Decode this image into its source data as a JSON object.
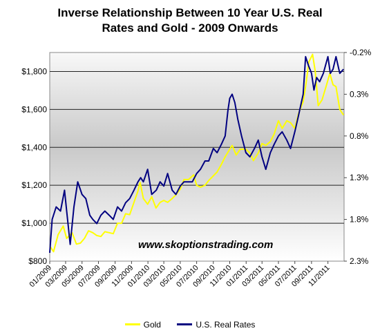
{
  "chart_data": {
    "type": "line",
    "title": [
      "Inverse Relationship Between 10 Year U.S. Real",
      "Rates and Gold - 2009 Onwards"
    ],
    "watermark": "www.skoptionstrading.com",
    "x_tick_labels": [
      "01/2009",
      "03/2009",
      "05/2009",
      "07/2009",
      "09/2009",
      "11/2009",
      "01/2010",
      "03/2010",
      "05/2010",
      "07/2010",
      "09/2010",
      "11/2010",
      "01/2011",
      "03/2011",
      "05/2011",
      "07/2011",
      "09/2011",
      "11/2011"
    ],
    "xlim": [
      "2009-01-01",
      "2011-12-31"
    ],
    "y_left": {
      "ticks": [
        "$800",
        "$1,000",
        "$1,200",
        "$1,400",
        "$1,600",
        "$1,800"
      ],
      "ylim": [
        800,
        1900
      ]
    },
    "y_right": {
      "ticks": [
        "-0.2%",
        "0.3%",
        "0.8%",
        "1.3%",
        "1.8%",
        "2.3%"
      ],
      "ylim": [
        2.3,
        -0.2
      ],
      "inverted": true
    },
    "grid": true,
    "legend_position": "bottom",
    "series": [
      {
        "name": "Gold",
        "color": "#ffff00",
        "axis": "left",
        "x": [
          "2009-01-01",
          "2009-01-15",
          "2009-02-01",
          "2009-02-20",
          "2009-03-05",
          "2009-03-25",
          "2009-04-10",
          "2009-04-25",
          "2009-05-10",
          "2009-05-25",
          "2009-06-10",
          "2009-06-25",
          "2009-07-10",
          "2009-07-25",
          "2009-08-10",
          "2009-08-25",
          "2009-09-10",
          "2009-09-25",
          "2009-10-10",
          "2009-10-25",
          "2009-11-10",
          "2009-11-25",
          "2009-12-03",
          "2009-12-15",
          "2009-12-31",
          "2010-01-15",
          "2010-01-31",
          "2010-02-15",
          "2010-03-01",
          "2010-03-15",
          "2010-04-01",
          "2010-04-15",
          "2010-05-01",
          "2010-05-15",
          "2010-06-01",
          "2010-06-20",
          "2010-07-01",
          "2010-07-15",
          "2010-08-01",
          "2010-08-15",
          "2010-09-01",
          "2010-09-15",
          "2010-10-01",
          "2010-10-15",
          "2010-11-01",
          "2010-11-10",
          "2010-11-25",
          "2010-12-10",
          "2010-12-31",
          "2011-01-15",
          "2011-01-28",
          "2011-02-15",
          "2011-03-01",
          "2011-03-15",
          "2011-04-01",
          "2011-04-15",
          "2011-05-01",
          "2011-05-15",
          "2011-06-01",
          "2011-06-15",
          "2011-07-01",
          "2011-07-15",
          "2011-08-01",
          "2011-08-10",
          "2011-08-22",
          "2011-09-05",
          "2011-09-15",
          "2011-09-26",
          "2011-10-10",
          "2011-10-25",
          "2011-11-08",
          "2011-11-20",
          "2011-12-01",
          "2011-12-15",
          "2011-12-29"
        ],
        "values": [
          880,
          850,
          940,
          985,
          920,
          950,
          890,
          895,
          920,
          960,
          950,
          935,
          930,
          955,
          950,
          945,
          1000,
          1000,
          1050,
          1045,
          1110,
          1170,
          1215,
          1130,
          1100,
          1140,
          1080,
          1110,
          1120,
          1110,
          1130,
          1150,
          1180,
          1230,
          1230,
          1255,
          1200,
          1190,
          1200,
          1225,
          1250,
          1270,
          1310,
          1350,
          1390,
          1410,
          1360,
          1390,
          1390,
          1370,
          1330,
          1370,
          1420,
          1410,
          1430,
          1470,
          1540,
          1500,
          1540,
          1530,
          1500,
          1580,
          1640,
          1720,
          1850,
          1890,
          1800,
          1620,
          1650,
          1720,
          1790,
          1730,
          1720,
          1600,
          1570
        ]
      },
      {
        "name": "U.S. Real Rates",
        "color": "#000080",
        "axis": "right",
        "x": [
          "2009-01-01",
          "2009-01-10",
          "2009-01-25",
          "2009-02-10",
          "2009-02-25",
          "2009-03-05",
          "2009-03-18",
          "2009-04-01",
          "2009-04-15",
          "2009-05-01",
          "2009-05-15",
          "2009-05-30",
          "2009-06-10",
          "2009-06-25",
          "2009-07-10",
          "2009-07-25",
          "2009-08-10",
          "2009-08-25",
          "2009-09-10",
          "2009-09-25",
          "2009-10-10",
          "2009-10-25",
          "2009-11-10",
          "2009-11-25",
          "2009-12-05",
          "2009-12-15",
          "2009-12-31",
          "2010-01-15",
          "2010-02-01",
          "2010-02-15",
          "2010-03-01",
          "2010-03-15",
          "2010-04-01",
          "2010-04-15",
          "2010-05-01",
          "2010-05-15",
          "2010-06-01",
          "2010-06-15",
          "2010-07-01",
          "2010-07-15",
          "2010-08-01",
          "2010-08-15",
          "2010-09-01",
          "2010-09-15",
          "2010-10-01",
          "2010-10-15",
          "2010-10-25",
          "2010-11-01",
          "2010-11-10",
          "2010-11-20",
          "2010-12-01",
          "2010-12-15",
          "2010-12-31",
          "2011-01-15",
          "2011-02-01",
          "2011-02-15",
          "2011-03-01",
          "2011-03-15",
          "2011-04-01",
          "2011-04-15",
          "2011-05-01",
          "2011-05-15",
          "2011-06-01",
          "2011-06-15",
          "2011-07-01",
          "2011-07-15",
          "2011-08-01",
          "2011-08-10",
          "2011-08-20",
          "2011-09-01",
          "2011-09-10",
          "2011-09-20",
          "2011-10-01",
          "2011-10-15",
          "2011-11-01",
          "2011-11-10",
          "2011-11-20",
          "2011-12-01",
          "2011-12-15",
          "2011-12-29"
        ],
        "values": [
          2.2,
          1.8,
          1.65,
          1.7,
          1.45,
          1.7,
          2.1,
          1.65,
          1.35,
          1.5,
          1.55,
          1.75,
          1.8,
          1.85,
          1.75,
          1.7,
          1.75,
          1.8,
          1.65,
          1.7,
          1.6,
          1.55,
          1.45,
          1.35,
          1.3,
          1.35,
          1.2,
          1.5,
          1.45,
          1.35,
          1.4,
          1.25,
          1.45,
          1.5,
          1.4,
          1.35,
          1.35,
          1.35,
          1.25,
          1.2,
          1.1,
          1.1,
          0.95,
          1.0,
          0.9,
          0.8,
          0.5,
          0.35,
          0.3,
          0.4,
          0.6,
          0.8,
          1.0,
          1.05,
          0.95,
          0.85,
          1.05,
          1.2,
          1.0,
          0.9,
          0.8,
          0.75,
          0.85,
          0.95,
          0.75,
          0.55,
          0.3,
          -0.15,
          -0.05,
          0.05,
          0.25,
          0.1,
          0.15,
          0.05,
          -0.15,
          0.05,
          0.0,
          -0.15,
          0.05,
          0.0
        ]
      }
    ]
  }
}
